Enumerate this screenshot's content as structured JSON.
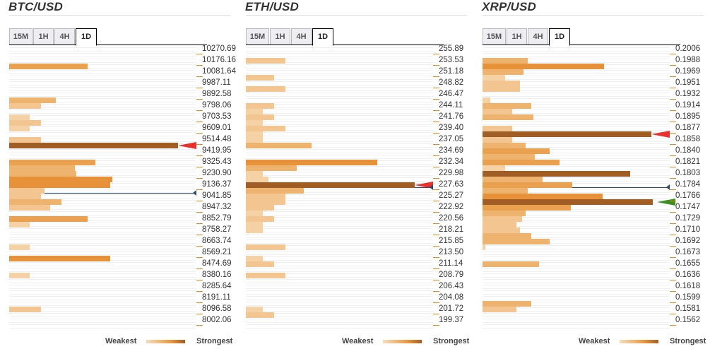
{
  "legend": {
    "weakest": "Weakest",
    "strongest": "Strongest"
  },
  "tabs": [
    "15M",
    "1H",
    "4H",
    "1D"
  ],
  "active_tab": "1D",
  "colors": {
    "sell_arrow": "#e8312f",
    "buy_arrow": "#3a8f1f",
    "price_line": "#2e4a6b",
    "strongest": "#a05e25",
    "weakest": "#f5d2a6"
  },
  "chart_data": [
    {
      "type": "bar",
      "title": "BTC/USD",
      "timeframe": "1D",
      "ylabels": [
        "10270.69",
        "10176.16",
        "10081.64",
        "9987.11",
        "9892.58",
        "9798.06",
        "9703.53",
        "9609.01",
        "9514.48",
        "9419.95",
        "9325.43",
        "9230.90",
        "9136.37",
        "9041.85",
        "8947.32",
        "8852.79",
        "8758.27",
        "8663.74",
        "8569.21",
        "8474.69",
        "8380.16",
        "8285.64",
        "8191.11",
        "8096.58",
        "8002.06"
      ],
      "rows": 50,
      "bars": [
        {
          "row": 3,
          "strength": 0.42,
          "level": 4
        },
        {
          "row": 9,
          "strength": 0.25,
          "level": 3
        },
        {
          "row": 10,
          "strength": 0.17,
          "level": 2
        },
        {
          "row": 12,
          "strength": 0.11,
          "level": 1
        },
        {
          "row": 13,
          "strength": 0.17,
          "level": 2
        },
        {
          "row": 14,
          "strength": 0.11,
          "level": 1
        },
        {
          "row": 16,
          "strength": 0.17,
          "level": 2
        },
        {
          "row": 17,
          "strength": 0.9,
          "level": 6
        },
        {
          "row": 20,
          "strength": 0.46,
          "level": 4
        },
        {
          "row": 21,
          "strength": 0.35,
          "level": 3
        },
        {
          "row": 22,
          "strength": 0.36,
          "level": 3
        },
        {
          "row": 23,
          "strength": 0.55,
          "level": 5
        },
        {
          "row": 24,
          "strength": 0.54,
          "level": 5
        },
        {
          "row": 25,
          "strength": 0.19,
          "level": 2
        },
        {
          "row": 26,
          "strength": 0.17,
          "level": 2
        },
        {
          "row": 27,
          "strength": 0.28,
          "level": 3
        },
        {
          "row": 28,
          "strength": 0.22,
          "level": 2
        },
        {
          "row": 30,
          "strength": 0.42,
          "level": 4
        },
        {
          "row": 31,
          "strength": 0.11,
          "level": 1
        },
        {
          "row": 35,
          "strength": 0.11,
          "level": 1
        },
        {
          "row": 37,
          "strength": 0.54,
          "level": 5
        },
        {
          "row": 40,
          "strength": 0.11,
          "level": 1
        },
        {
          "row": 46,
          "strength": 0.17,
          "level": 2
        }
      ],
      "markers": [
        {
          "type": "sell-arrow",
          "row": 17
        },
        {
          "type": "current-price",
          "row": 25
        }
      ]
    },
    {
      "type": "bar",
      "title": "ETH/USD",
      "timeframe": "1D",
      "ylabels": [
        "255.89",
        "253.53",
        "251.18",
        "248.82",
        "246.47",
        "244.11",
        "241.76",
        "239.40",
        "237.05",
        "234.69",
        "232.34",
        "229.98",
        "227.63",
        "225.27",
        "222.92",
        "220.56",
        "218.21",
        "215.85",
        "213.50",
        "211.14",
        "208.79",
        "206.43",
        "204.08",
        "201.72",
        "199.37"
      ],
      "rows": 50,
      "bars": [
        {
          "row": 2,
          "strength": 0.21,
          "level": 2
        },
        {
          "row": 5,
          "strength": 0.15,
          "level": 2
        },
        {
          "row": 7,
          "strength": 0.21,
          "level": 2
        },
        {
          "row": 10,
          "strength": 0.15,
          "level": 2
        },
        {
          "row": 11,
          "strength": 0.09,
          "level": 1
        },
        {
          "row": 12,
          "strength": 0.15,
          "level": 2
        },
        {
          "row": 13,
          "strength": 0.09,
          "level": 1
        },
        {
          "row": 14,
          "strength": 0.21,
          "level": 2
        },
        {
          "row": 15,
          "strength": 0.09,
          "level": 1
        },
        {
          "row": 16,
          "strength": 0.09,
          "level": 1
        },
        {
          "row": 17,
          "strength": 0.35,
          "level": 3
        },
        {
          "row": 20,
          "strength": 0.7,
          "level": 5
        },
        {
          "row": 21,
          "strength": 0.27,
          "level": 3
        },
        {
          "row": 22,
          "strength": 0.09,
          "level": 1
        },
        {
          "row": 23,
          "strength": 0.12,
          "level": 1
        },
        {
          "row": 24,
          "strength": 0.9,
          "level": 6
        },
        {
          "row": 25,
          "strength": 0.31,
          "level": 3
        },
        {
          "row": 26,
          "strength": 0.21,
          "level": 2
        },
        {
          "row": 27,
          "strength": 0.21,
          "level": 2
        },
        {
          "row": 28,
          "strength": 0.15,
          "level": 2
        },
        {
          "row": 29,
          "strength": 0.09,
          "level": 1
        },
        {
          "row": 30,
          "strength": 0.15,
          "level": 2
        },
        {
          "row": 31,
          "strength": 0.09,
          "level": 1
        },
        {
          "row": 32,
          "strength": 0.09,
          "level": 1
        },
        {
          "row": 35,
          "strength": 0.21,
          "level": 2
        },
        {
          "row": 37,
          "strength": 0.09,
          "level": 1
        },
        {
          "row": 38,
          "strength": 0.15,
          "level": 2
        },
        {
          "row": 40,
          "strength": 0.21,
          "level": 2
        },
        {
          "row": 46,
          "strength": 0.09,
          "level": 1
        },
        {
          "row": 47,
          "strength": 0.15,
          "level": 2
        }
      ],
      "markers": [
        {
          "type": "sell-arrow",
          "row": 24
        },
        {
          "type": "current-price",
          "row": 24
        }
      ]
    },
    {
      "type": "bar",
      "title": "XRP/USD",
      "timeframe": "1D",
      "ylabels": [
        "0.2006",
        "0.1988",
        "0.1969",
        "0.1951",
        "0.1932",
        "0.1914",
        "0.1895",
        "0.1877",
        "0.1858",
        "0.1840",
        "0.1821",
        "0.1803",
        "0.1784",
        "0.1766",
        "0.1747",
        "0.1729",
        "0.1710",
        "0.1692",
        "0.1673",
        "0.1655",
        "0.1636",
        "0.1618",
        "0.1599",
        "0.1581",
        "0.1562"
      ],
      "rows": 50,
      "bars": [
        {
          "row": 2,
          "strength": 0.24,
          "level": 3
        },
        {
          "row": 3,
          "strength": 0.65,
          "level": 5
        },
        {
          "row": 4,
          "strength": 0.22,
          "level": 3
        },
        {
          "row": 5,
          "strength": 0.12,
          "level": 1
        },
        {
          "row": 6,
          "strength": 0.2,
          "level": 2
        },
        {
          "row": 7,
          "strength": 0.2,
          "level": 2
        },
        {
          "row": 9,
          "strength": 0.04,
          "level": 1
        },
        {
          "row": 10,
          "strength": 0.26,
          "level": 3
        },
        {
          "row": 11,
          "strength": 0.16,
          "level": 2
        },
        {
          "row": 12,
          "strength": 0.27,
          "level": 3
        },
        {
          "row": 14,
          "strength": 0.16,
          "level": 2
        },
        {
          "row": 15,
          "strength": 0.9,
          "level": 6
        },
        {
          "row": 16,
          "strength": 0.16,
          "level": 2
        },
        {
          "row": 17,
          "strength": 0.23,
          "level": 3
        },
        {
          "row": 18,
          "strength": 0.36,
          "level": 4
        },
        {
          "row": 19,
          "strength": 0.28,
          "level": 3
        },
        {
          "row": 20,
          "strength": 0.41,
          "level": 4
        },
        {
          "row": 21,
          "strength": 0.12,
          "level": 1
        },
        {
          "row": 22,
          "strength": 0.79,
          "level": 6
        },
        {
          "row": 23,
          "strength": 0.32,
          "level": 3
        },
        {
          "row": 24,
          "strength": 0.48,
          "level": 4
        },
        {
          "row": 25,
          "strength": 0.24,
          "level": 3
        },
        {
          "row": 26,
          "strength": 0.64,
          "level": 5
        },
        {
          "row": 27,
          "strength": 0.91,
          "level": 6
        },
        {
          "row": 28,
          "strength": 0.47,
          "level": 4
        },
        {
          "row": 29,
          "strength": 0.23,
          "level": 3
        },
        {
          "row": 30,
          "strength": 0.21,
          "level": 2
        },
        {
          "row": 31,
          "strength": 0.18,
          "level": 2
        },
        {
          "row": 32,
          "strength": 0.2,
          "level": 2
        },
        {
          "row": 33,
          "strength": 0.26,
          "level": 3
        },
        {
          "row": 34,
          "strength": 0.36,
          "level": 3
        },
        {
          "row": 35,
          "strength": 0.015,
          "level": 1
        },
        {
          "row": 38,
          "strength": 0.3,
          "level": 3
        },
        {
          "row": 45,
          "strength": 0.26,
          "level": 3
        },
        {
          "row": 46,
          "strength": 0.18,
          "level": 2
        }
      ],
      "markers": [
        {
          "type": "sell-arrow",
          "row": 15
        },
        {
          "type": "current-price",
          "row": 24
        },
        {
          "type": "buy-arrow",
          "row": 27
        }
      ]
    }
  ]
}
